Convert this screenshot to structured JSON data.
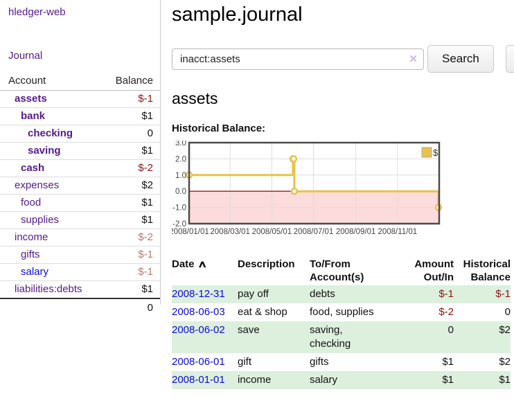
{
  "app": {
    "title": "hledger-web"
  },
  "sidebar": {
    "nav_journal": "Journal",
    "header": {
      "account": "Account",
      "balance": "Balance"
    },
    "accounts": [
      {
        "name": "assets",
        "balance": "$-1"
      },
      {
        "name": "bank",
        "balance": "$1"
      },
      {
        "name": "checking",
        "balance": "0"
      },
      {
        "name": "saving",
        "balance": "$1"
      },
      {
        "name": "cash",
        "balance": "$-2"
      },
      {
        "name": "expenses",
        "balance": "$2"
      },
      {
        "name": "food",
        "balance": "$1"
      },
      {
        "name": "supplies",
        "balance": "$1"
      },
      {
        "name": "income",
        "balance": "$-2"
      },
      {
        "name": "gifts",
        "balance": "$-1"
      },
      {
        "name": "salary",
        "balance": "$-1"
      },
      {
        "name": "liabilities:debts",
        "balance": "$1"
      }
    ],
    "total": "0"
  },
  "main": {
    "title": "sample.journal",
    "search": {
      "query": "inacct:assets",
      "clear_icon": "✕",
      "button_label": "Search",
      "help_label": "?"
    },
    "account_heading": "assets",
    "chart_label": "Historical Balance:"
  },
  "register": {
    "headers": {
      "date": "Date",
      "description": "Description",
      "accounts": "To/From Account(s)",
      "amount": "Amount Out/In",
      "balance": "Historical Balance"
    },
    "sort_icon": "∧",
    "rows": [
      {
        "date": "2008-12-31",
        "description": "pay off",
        "accounts": "debts",
        "amount": "$-1",
        "balance": "$-1"
      },
      {
        "date": "2008-06-03",
        "description": "eat & shop",
        "accounts": "food, supplies",
        "amount": "$-2",
        "balance": "0"
      },
      {
        "date": "2008-06-02",
        "description": "save",
        "accounts": "saving, checking",
        "amount": "0",
        "balance": "$2"
      },
      {
        "date": "2008-06-01",
        "description": "gift",
        "accounts": "gifts",
        "amount": "$1",
        "balance": "$2"
      },
      {
        "date": "2008-01-01",
        "description": "income",
        "accounts": "salary",
        "amount": "$1",
        "balance": "$1"
      }
    ]
  },
  "chart_data": {
    "type": "line",
    "step": true,
    "title": "Historical Balance:",
    "legend": "$",
    "legend_position": "top-right",
    "grid": true,
    "ylim": [
      -2,
      3
    ],
    "x_max_days": 366,
    "series": [
      {
        "name": "$",
        "color": "#e8c24a",
        "points": [
          {
            "date": "2008-01-01",
            "day": 0,
            "value": 1
          },
          {
            "date": "2008-06-01",
            "day": 152,
            "value": 2
          },
          {
            "date": "2008-06-02",
            "day": 153,
            "value": 2
          },
          {
            "date": "2008-06-03",
            "day": 154,
            "value": 0
          },
          {
            "date": "2008-12-31",
            "day": 365,
            "value": -1
          }
        ]
      }
    ],
    "y_ticks": [
      {
        "v": 3,
        "label": "3.0"
      },
      {
        "v": 2,
        "label": "2.0"
      },
      {
        "v": 1,
        "label": "1.0"
      },
      {
        "v": 0,
        "label": "0.0"
      },
      {
        "v": -1,
        "label": "-1.0"
      },
      {
        "v": -2,
        "label": "-2.0"
      }
    ],
    "x_ticks": [
      {
        "day": 0,
        "label": "2008/01/01"
      },
      {
        "day": 60,
        "label": "2008/03/01"
      },
      {
        "day": 121,
        "label": "2008/05/01"
      },
      {
        "day": 182,
        "label": "2008/07/01"
      },
      {
        "day": 244,
        "label": "2008/09/01"
      },
      {
        "day": 305,
        "label": "2008/11/01"
      }
    ],
    "negative_fill": "#fbdbdb",
    "zero_line_color": "#a51515",
    "gridline_color": "#dedede",
    "border_color": "#4a4a4a"
  },
  "colors": {
    "visited_link": "#551a8b",
    "unvisited_link": "#0b0bdd",
    "negative_amount": "#8b1414",
    "negative_amount_dim": "#b97676",
    "row_stripe_green": "#ddefdd",
    "series_gold": "#e8c24a"
  }
}
